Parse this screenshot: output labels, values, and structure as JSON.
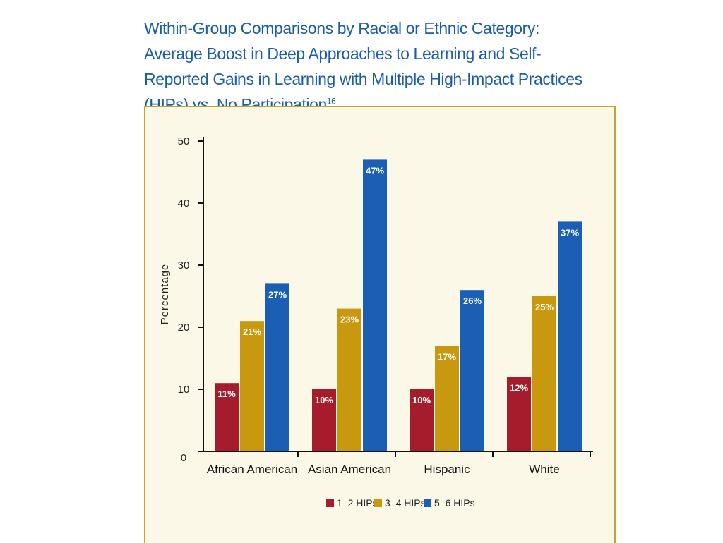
{
  "title": "Within-Group Comparisons by Racial or Ethnic Category: Average Boost in Deep Approaches to Learning and Self-Reported Gains in Learning with Multiple High-Impact Practices (HIPs) vs. No Participation",
  "title_footnote": "16",
  "colors": {
    "series_1": "#a51d2d",
    "series_2": "#c8980e",
    "series_3": "#1a5fb4",
    "panel_bg": "#fbf8e7",
    "panel_border": "#c9a227",
    "title": "#1a5da6"
  },
  "chart_data": {
    "type": "bar",
    "title": "",
    "xlabel": "",
    "ylabel": "Percentage",
    "ylim": [
      0,
      50
    ],
    "yticks": [
      0,
      10,
      20,
      30,
      40,
      50
    ],
    "grid": false,
    "legend_position": "bottom",
    "categories": [
      "African American",
      "Asian American",
      "Hispanic",
      "White"
    ],
    "series": [
      {
        "name": "1–2 HIPs",
        "values": [
          11,
          10,
          10,
          12
        ],
        "labels": [
          "11%",
          "10%",
          "10%",
          "12%"
        ]
      },
      {
        "name": "3–4 HIPs",
        "values": [
          21,
          23,
          17,
          25
        ],
        "labels": [
          "21%",
          "23%",
          "17%",
          "25%"
        ]
      },
      {
        "name": "5–6 HIPs",
        "values": [
          27,
          47,
          26,
          37
        ],
        "labels": [
          "27%",
          "47%",
          "26%",
          "37%"
        ]
      }
    ]
  }
}
